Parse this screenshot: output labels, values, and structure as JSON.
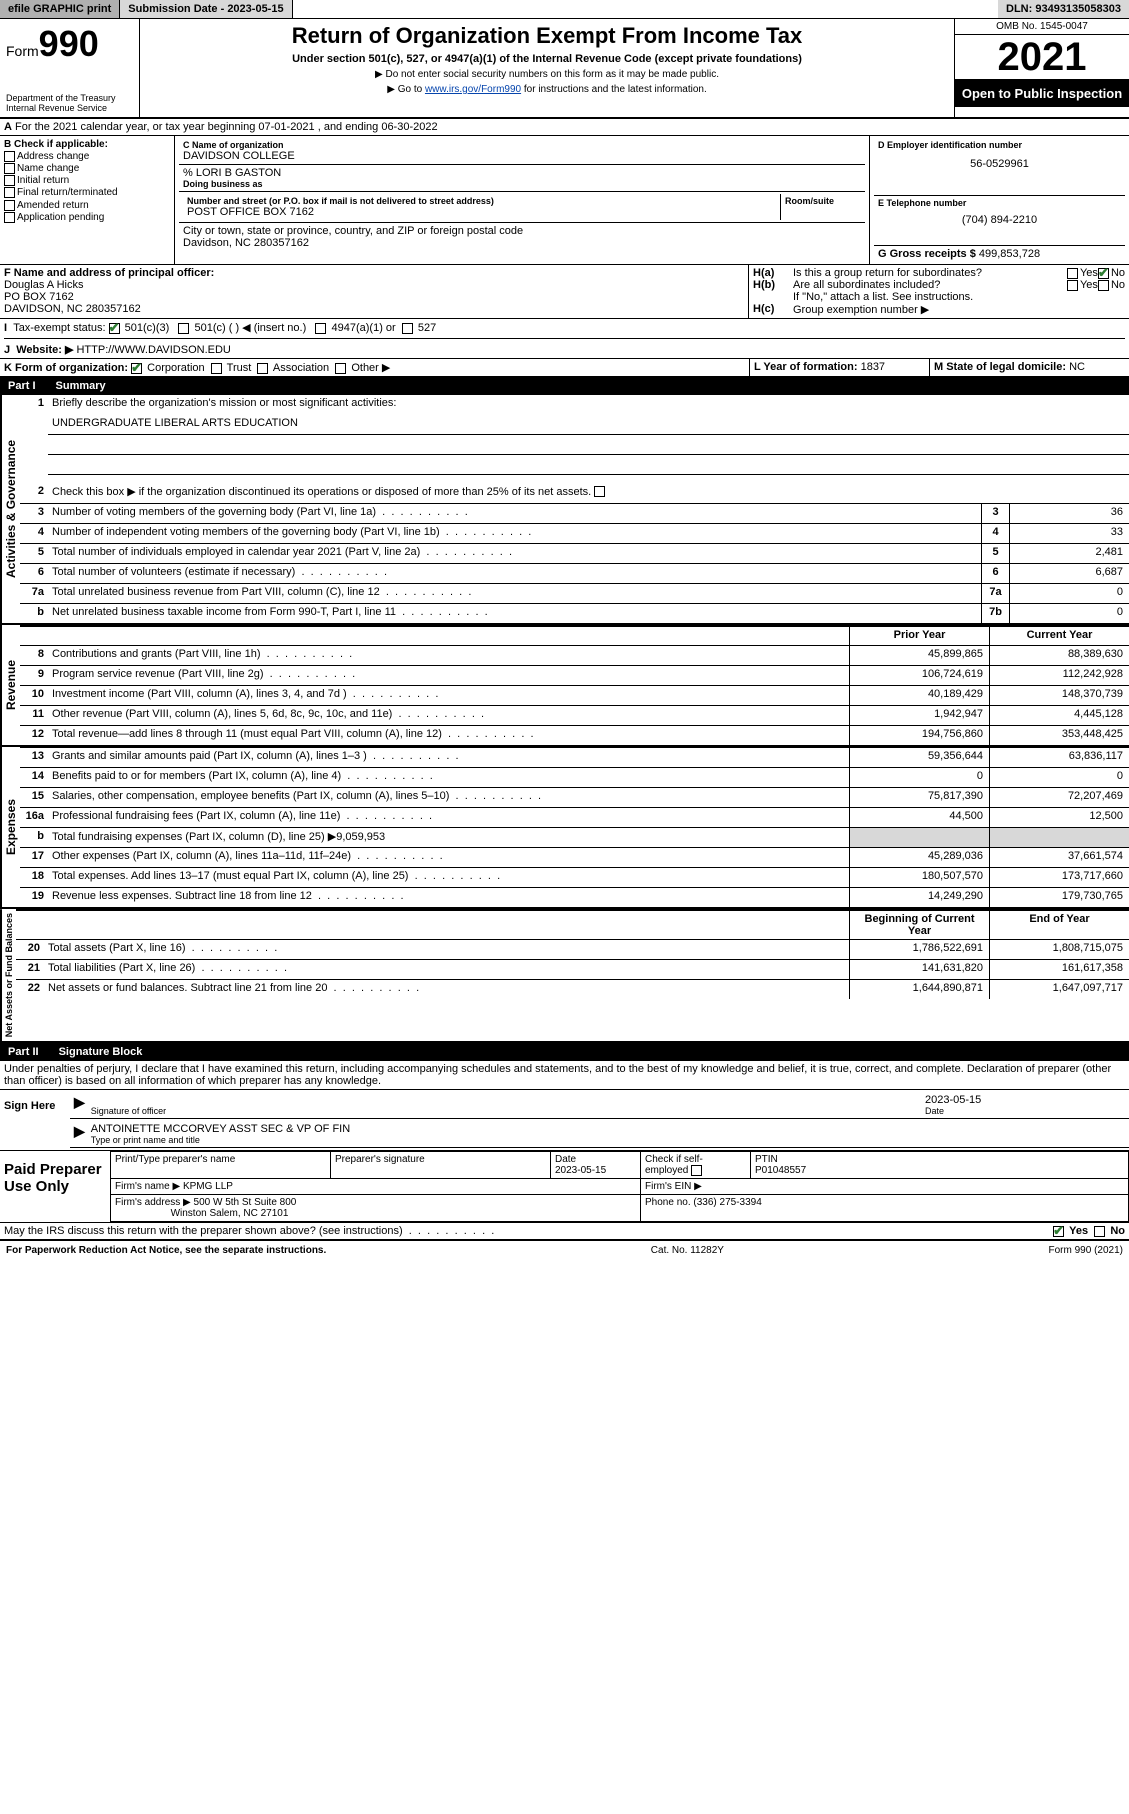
{
  "topbar": {
    "efile": "efile GRAPHIC print",
    "submission": "Submission Date - 2023-05-15",
    "dln": "DLN: 93493135058303"
  },
  "header": {
    "form": "Form",
    "form_num": "990",
    "dept": "Department of the Treasury\nInternal Revenue Service",
    "title": "Return of Organization Exempt From Income Tax",
    "sub": "Under section 501(c), 527, or 4947(a)(1) of the Internal Revenue Code (except private foundations)",
    "note1": "▶ Do not enter social security numbers on this form as it may be made public.",
    "note2_pre": "▶ Go to ",
    "note2_link": "www.irs.gov/Form990",
    "note2_post": " for instructions and the latest information.",
    "omb": "OMB No. 1545-0047",
    "year": "2021",
    "open": "Open to Public Inspection"
  },
  "lineA": "For the 2021 calendar year, or tax year beginning 07-01-2021   , and ending 06-30-2022",
  "colB": {
    "title": "B Check if applicable:",
    "items": [
      "Address change",
      "Name change",
      "Initial return",
      "Final return/terminated",
      "Amended return",
      "Application pending"
    ]
  },
  "colC": {
    "name_label": "C Name of organization",
    "name": "DAVIDSON COLLEGE",
    "care_of": "% LORI B GASTON",
    "dba_label": "Doing business as",
    "street_label": "Number and street (or P.O. box if mail is not delivered to street address)",
    "room_label": "Room/suite",
    "street": "POST OFFICE BOX 7162",
    "city_label": "City or town, state or province, country, and ZIP or foreign postal code",
    "city": "Davidson, NC  280357162"
  },
  "colD": {
    "ein_label": "D Employer identification number",
    "ein": "56-0529961",
    "phone_label": "E Telephone number",
    "phone": "(704) 894-2210",
    "gross_label": "G Gross receipts $",
    "gross": "499,853,728"
  },
  "lineF": {
    "label": "F Name and address of principal officer:",
    "name": "Douglas A Hicks",
    "addr1": "PO BOX 7162",
    "addr2": "DAVIDSON, NC  280357162"
  },
  "lineH": {
    "a": "Is this a group return for subordinates?",
    "b": "Are all subordinates included?",
    "attach": "If \"No,\" attach a list. See instructions.",
    "c": "Group exemption number ▶"
  },
  "lineI": {
    "label": "Tax-exempt status:",
    "opt1": "501(c)(3)",
    "opt2": "501(c) (  ) ◀ (insert no.)",
    "opt3": "4947(a)(1) or",
    "opt4": "527"
  },
  "lineJ": {
    "label": "Website: ▶",
    "val": "HTTP://WWW.DAVIDSON.EDU"
  },
  "lineK": {
    "label": "K Form of organization:",
    "opts": [
      "Corporation",
      "Trust",
      "Association",
      "Other ▶"
    ]
  },
  "lineL": {
    "label": "L Year of formation:",
    "val": "1837"
  },
  "lineM": {
    "label": "M State of legal domicile:",
    "val": "NC"
  },
  "part1": {
    "num": "Part I",
    "title": "Summary"
  },
  "summary": {
    "gov_label": "Activities & Governance",
    "rev_label": "Revenue",
    "exp_label": "Expenses",
    "net_label": "Net Assets or Fund Balances",
    "line1": "Briefly describe the organization's mission or most significant activities:",
    "line1_val": "UNDERGRADUATE LIBERAL ARTS EDUCATION",
    "line2": "Check this box ▶      if the organization discontinued its operations or disposed of more than 25% of its net assets.",
    "rows_gov": [
      {
        "n": "3",
        "d": "Number of voting members of the governing body (Part VI, line 1a)",
        "c": "3",
        "v": "36"
      },
      {
        "n": "4",
        "d": "Number of independent voting members of the governing body (Part VI, line 1b)",
        "c": "4",
        "v": "33"
      },
      {
        "n": "5",
        "d": "Total number of individuals employed in calendar year 2021 (Part V, line 2a)",
        "c": "5",
        "v": "2,481"
      },
      {
        "n": "6",
        "d": "Total number of volunteers (estimate if necessary)",
        "c": "6",
        "v": "6,687"
      },
      {
        "n": "7a",
        "d": "Total unrelated business revenue from Part VIII, column (C), line 12",
        "c": "7a",
        "v": "0"
      },
      {
        "n": "b",
        "d": "Net unrelated business taxable income from Form 990-T, Part I, line 11",
        "c": "7b",
        "v": "0"
      }
    ],
    "col_headers": {
      "prior": "Prior Year",
      "current": "Current Year",
      "begin": "Beginning of Current Year",
      "end": "End of Year"
    },
    "rows_rev": [
      {
        "n": "8",
        "d": "Contributions and grants (Part VIII, line 1h)",
        "p": "45,899,865",
        "c": "88,389,630"
      },
      {
        "n": "9",
        "d": "Program service revenue (Part VIII, line 2g)",
        "p": "106,724,619",
        "c": "112,242,928"
      },
      {
        "n": "10",
        "d": "Investment income (Part VIII, column (A), lines 3, 4, and 7d )",
        "p": "40,189,429",
        "c": "148,370,739"
      },
      {
        "n": "11",
        "d": "Other revenue (Part VIII, column (A), lines 5, 6d, 8c, 9c, 10c, and 11e)",
        "p": "1,942,947",
        "c": "4,445,128"
      },
      {
        "n": "12",
        "d": "Total revenue—add lines 8 through 11 (must equal Part VIII, column (A), line 12)",
        "p": "194,756,860",
        "c": "353,448,425"
      }
    ],
    "rows_exp": [
      {
        "n": "13",
        "d": "Grants and similar amounts paid (Part IX, column (A), lines 1–3 )",
        "p": "59,356,644",
        "c": "63,836,117"
      },
      {
        "n": "14",
        "d": "Benefits paid to or for members (Part IX, column (A), line 4)",
        "p": "0",
        "c": "0"
      },
      {
        "n": "15",
        "d": "Salaries, other compensation, employee benefits (Part IX, column (A), lines 5–10)",
        "p": "75,817,390",
        "c": "72,207,469"
      },
      {
        "n": "16a",
        "d": "Professional fundraising fees (Part IX, column (A), line 11e)",
        "p": "44,500",
        "c": "12,500"
      },
      {
        "n": "b",
        "d": "Total fundraising expenses (Part IX, column (D), line 25) ▶9,059,953",
        "shaded": true
      },
      {
        "n": "17",
        "d": "Other expenses (Part IX, column (A), lines 11a–11d, 11f–24e)",
        "p": "45,289,036",
        "c": "37,661,574"
      },
      {
        "n": "18",
        "d": "Total expenses. Add lines 13–17 (must equal Part IX, column (A), line 25)",
        "p": "180,507,570",
        "c": "173,717,660"
      },
      {
        "n": "19",
        "d": "Revenue less expenses. Subtract line 18 from line 12",
        "p": "14,249,290",
        "c": "179,730,765"
      }
    ],
    "rows_net": [
      {
        "n": "20",
        "d": "Total assets (Part X, line 16)",
        "p": "1,786,522,691",
        "c": "1,808,715,075"
      },
      {
        "n": "21",
        "d": "Total liabilities (Part X, line 26)",
        "p": "141,631,820",
        "c": "161,617,358"
      },
      {
        "n": "22",
        "d": "Net assets or fund balances. Subtract line 21 from line 20",
        "p": "1,644,890,871",
        "c": "1,647,097,717"
      }
    ]
  },
  "part2": {
    "num": "Part II",
    "title": "Signature Block"
  },
  "perjury": "Under penalties of perjury, I declare that I have examined this return, including accompanying schedules and statements, and to the best of my knowledge and belief, it is true, correct, and complete. Declaration of preparer (other than officer) is based on all information of which preparer has any knowledge.",
  "sign": {
    "here": "Sign Here",
    "sig_label": "Signature of officer",
    "date": "2023-05-15",
    "date_label": "Date",
    "name": "ANTOINETTE MCCORVEY  ASST SEC & VP OF FIN",
    "name_label": "Type or print name and title"
  },
  "paid": {
    "label": "Paid Preparer Use Only",
    "h1": "Print/Type preparer's name",
    "h2": "Preparer's signature",
    "h3": "Date",
    "h3v": "2023-05-15",
    "h4": "Check      if self-employed",
    "h5": "PTIN",
    "h5v": "P01048557",
    "firm_label": "Firm's name   ▶",
    "firm": "KPMG LLP",
    "ein_label": "Firm's EIN ▶",
    "addr_label": "Firm's address ▶",
    "addr1": "500 W 5th St Suite 800",
    "addr2": "Winston Salem, NC  27101",
    "phone_label": "Phone no.",
    "phone": "(336) 275-3394"
  },
  "discuss": "May the IRS discuss this return with the preparer shown above? (see instructions)",
  "footer": {
    "left": "For Paperwork Reduction Act Notice, see the separate instructions.",
    "mid": "Cat. No. 11282Y",
    "right": "Form 990 (2021)"
  }
}
